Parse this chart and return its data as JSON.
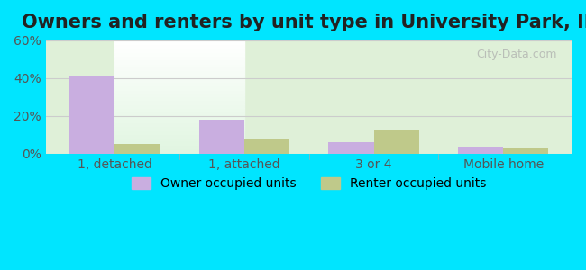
{
  "title": "Owners and renters by unit type in University Park, IL",
  "categories": [
    "1, detached",
    "1, attached",
    "3 or 4",
    "Mobile home"
  ],
  "owner_values": [
    41,
    18,
    6,
    4
  ],
  "renter_values": [
    5,
    7.5,
    13,
    3
  ],
  "owner_color": "#c9aee0",
  "renter_color": "#bfc98a",
  "ylim": [
    0,
    60
  ],
  "yticks": [
    0,
    20,
    40,
    60
  ],
  "ytick_labels": [
    "0%",
    "20%",
    "40%",
    "60%"
  ],
  "bar_width": 0.35,
  "background_outer": "#00e5ff",
  "background_inner_top": "#e8f5e0",
  "background_inner_bottom": "#ffffff",
  "grid_color": "#cccccc",
  "legend_owner": "Owner occupied units",
  "legend_renter": "Renter occupied units",
  "title_fontsize": 15,
  "axis_fontsize": 10,
  "legend_fontsize": 10,
  "watermark": "City-Data.com"
}
